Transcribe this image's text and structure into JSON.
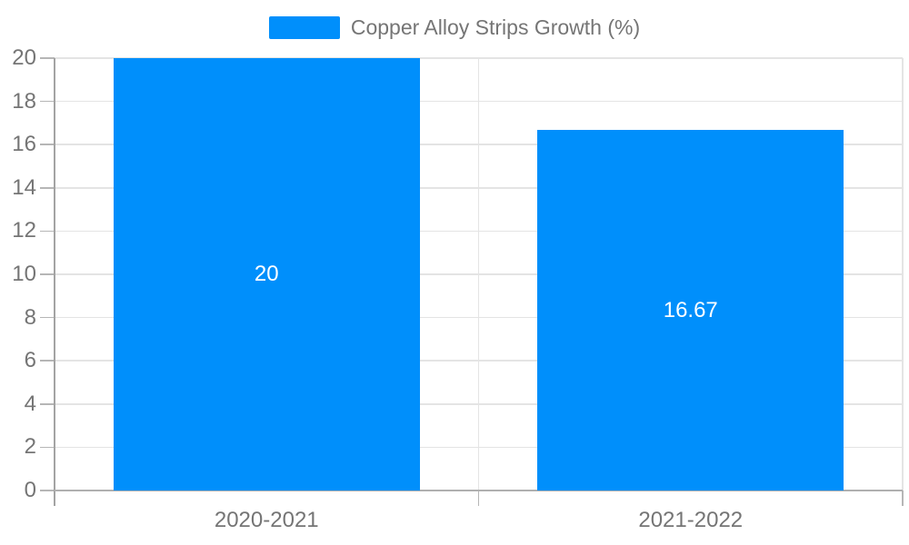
{
  "chart_data": {
    "type": "bar",
    "title": "",
    "categories": [
      "2020-2021",
      "2021-2022"
    ],
    "series": [
      {
        "name": "Copper Alloy Strips Growth (%)",
        "values": [
          20,
          16.67
        ]
      }
    ],
    "data_labels": [
      "20",
      "16.67"
    ],
    "xlabel": "",
    "ylabel": "",
    "ylim": [
      0,
      20
    ],
    "yticks": [
      0,
      2,
      4,
      6,
      8,
      10,
      12,
      14,
      16,
      18,
      20
    ],
    "grid": true,
    "legend": {
      "position": "top",
      "items": [
        {
          "label": "Copper Alloy Strips Growth (%)",
          "color": "#008FFB"
        }
      ]
    }
  },
  "colors": {
    "bar": "#008FFB",
    "background": "#ffffff",
    "gridline": "#e4e4e4",
    "axis_line": "#a3a3a3",
    "baseline": "#b0b0b0",
    "tick": "#b6b6b6",
    "axis_label": "#757575",
    "legend_text": "#757575",
    "data_label": "#ffffff"
  }
}
